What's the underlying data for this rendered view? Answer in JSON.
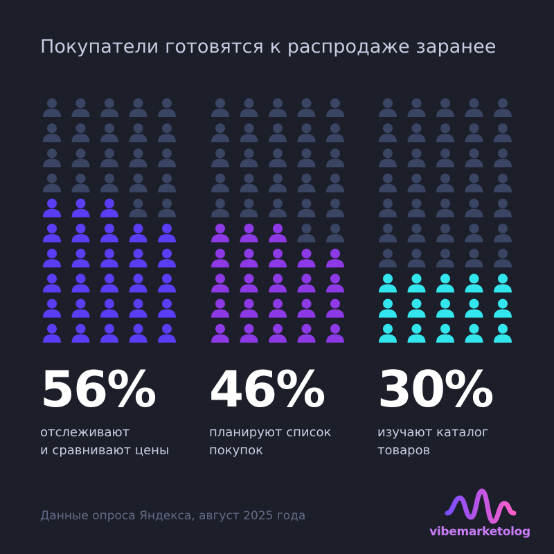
{
  "title": "Покупатели готовятся к распродаже заранее",
  "chart_data": {
    "type": "pictogram",
    "rows": 10,
    "cols": 5,
    "inactive_color": "#3a4564",
    "groups": [
      {
        "value": 56,
        "label": "56%",
        "description": "отслеживают\nи сравнивают цены",
        "color": "#5a3df4"
      },
      {
        "value": 46,
        "label": "46%",
        "description": "планируют список\nпокупок",
        "color": "#8d3ae6"
      },
      {
        "value": 30,
        "label": "30%",
        "description": "изучают каталог\nтоваров",
        "color": "#33e6ee"
      }
    ]
  },
  "source": "Данные опроса Яндекса, август 2025 года",
  "brand": {
    "name": "vibemarketolog",
    "icon": "wave-icon",
    "gradient": [
      "#7c4dff",
      "#ff5fc7"
    ]
  }
}
